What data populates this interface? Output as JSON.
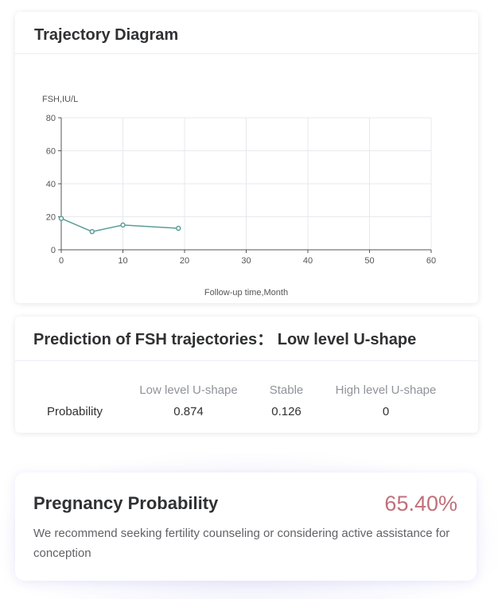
{
  "trajectory": {
    "title": "Trajectory Diagram"
  },
  "chart_data": {
    "type": "line",
    "title": "",
    "ylabel": "FSH,IU/L",
    "xlabel": "Follow-up time,Month",
    "xlim": [
      0,
      60
    ],
    "ylim": [
      0,
      80
    ],
    "xticks": [
      0,
      10,
      20,
      30,
      40,
      50,
      60
    ],
    "yticks": [
      0,
      20,
      40,
      60,
      80
    ],
    "grid": true,
    "series": [
      {
        "x": [
          0,
          5,
          10,
          19
        ],
        "values": [
          19,
          11,
          15,
          13
        ],
        "color": "#5a9e98"
      }
    ]
  },
  "prediction": {
    "title": "Prediction of FSH trajectories： Low level U-shape",
    "headers": [
      "Low level U-shape",
      "Stable",
      "High level U-shape"
    ],
    "row_label": "Probability",
    "values": [
      "0.874",
      "0.126",
      "0"
    ]
  },
  "pregnancy": {
    "title": "Pregnancy Probability",
    "value": "65.40%",
    "value_color": "#c0707a",
    "text": "We recommend seeking fertility counseling or considering active assistance for conception"
  }
}
